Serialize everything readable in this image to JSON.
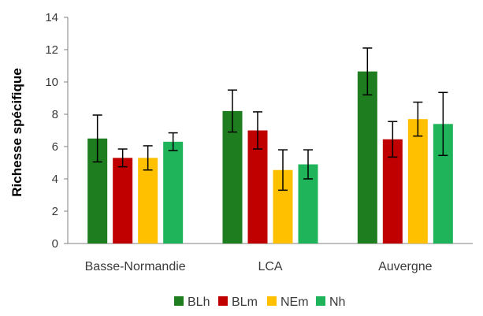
{
  "chart_data": {
    "type": "bar",
    "ylabel": "Richesse spécifique",
    "xlabel": "",
    "ylim": [
      0,
      14
    ],
    "yticks": [
      0,
      2,
      4,
      6,
      8,
      10,
      12,
      14
    ],
    "grid": false,
    "legend_position": "bottom",
    "categories": [
      "Basse-Normandie",
      "LCA",
      "Auvergne"
    ],
    "series": [
      {
        "name": "BLh",
        "color": "#1e7d1e",
        "values": [
          6.5,
          8.2,
          10.65
        ],
        "errors": [
          1.45,
          1.3,
          1.45
        ]
      },
      {
        "name": "BLm",
        "color": "#c00000",
        "values": [
          5.3,
          7.0,
          6.45
        ],
        "errors": [
          0.55,
          1.15,
          1.1
        ]
      },
      {
        "name": "NEm",
        "color": "#ffc000",
        "values": [
          5.3,
          4.55,
          7.7
        ],
        "errors": [
          0.75,
          1.25,
          1.05
        ]
      },
      {
        "name": "Nh",
        "color": "#1fb35a",
        "values": [
          6.3,
          4.9,
          7.4
        ],
        "errors": [
          0.55,
          0.9,
          1.95
        ]
      }
    ]
  }
}
